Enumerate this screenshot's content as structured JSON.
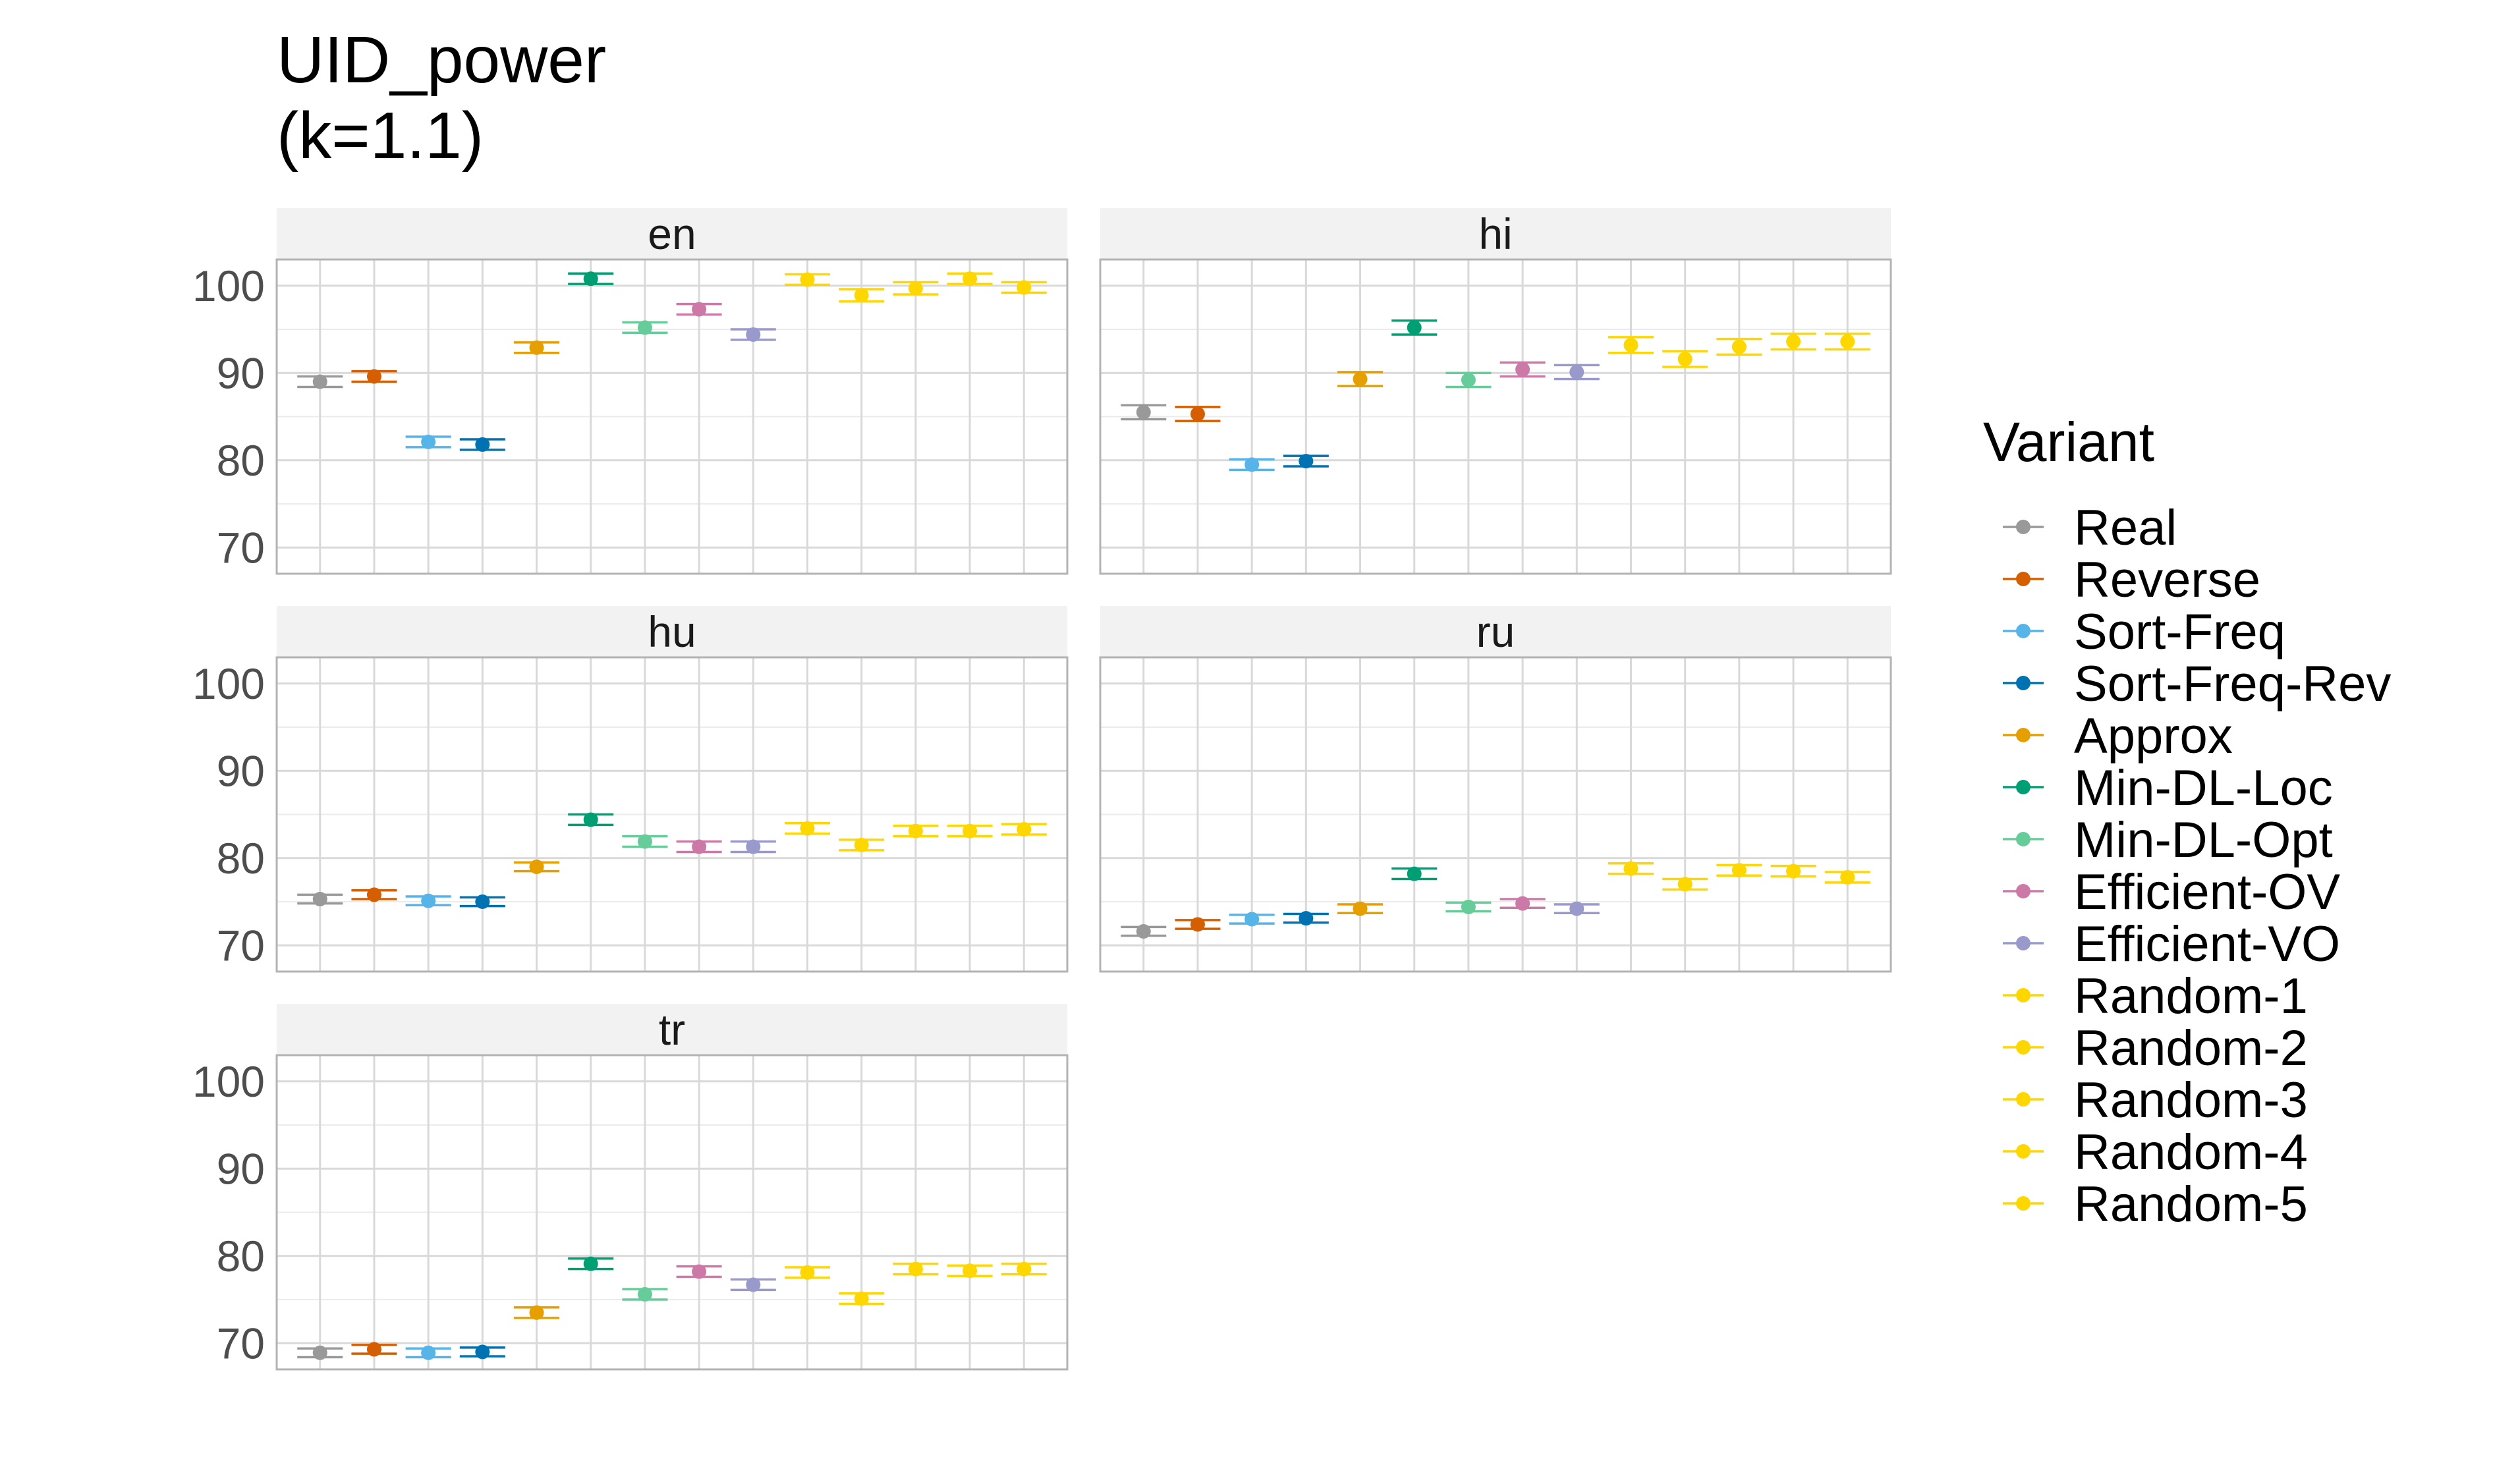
{
  "chart_data": {
    "type": "scatter",
    "subtype": "point-with-errorbar, faceted",
    "title": "UID_power",
    "subtitle": "(k=1.1)",
    "xlabel": "",
    "ylabel": "",
    "ylim": [
      67,
      103
    ],
    "yticks": [
      70,
      80,
      90,
      100
    ],
    "grid": true,
    "legend": {
      "title": "Variant",
      "position": "right"
    },
    "series": [
      {
        "name": "Real",
        "color": "#999999"
      },
      {
        "name": "Reverse",
        "color": "#D55E00"
      },
      {
        "name": "Sort-Freq",
        "color": "#56B4E9"
      },
      {
        "name": "Sort-Freq-Rev",
        "color": "#0072B2"
      },
      {
        "name": "Approx",
        "color": "#E69F00"
      },
      {
        "name": "Min-DL-Loc",
        "color": "#009E73"
      },
      {
        "name": "Min-DL-Opt",
        "color": "#66CC99"
      },
      {
        "name": "Efficient-OV",
        "color": "#CC79A7"
      },
      {
        "name": "Efficient-VO",
        "color": "#9999CC"
      },
      {
        "name": "Random-1",
        "color": "#FFD700"
      },
      {
        "name": "Random-2",
        "color": "#FFD700"
      },
      {
        "name": "Random-3",
        "color": "#FFD700"
      },
      {
        "name": "Random-4",
        "color": "#FFD700"
      },
      {
        "name": "Random-5",
        "color": "#FFD700"
      }
    ],
    "facets": [
      {
        "name": "en",
        "values": [
          89.0,
          89.6,
          82.1,
          81.8,
          92.9,
          100.8,
          95.2,
          97.3,
          94.4,
          100.7,
          98.9,
          99.7,
          100.8,
          99.8
        ],
        "errors": [
          0.6,
          0.6,
          0.6,
          0.6,
          0.6,
          0.6,
          0.6,
          0.6,
          0.6,
          0.6,
          0.7,
          0.7,
          0.6,
          0.6
        ]
      },
      {
        "name": "hi",
        "values": [
          85.5,
          85.3,
          79.5,
          79.9,
          89.3,
          95.2,
          89.2,
          90.4,
          90.1,
          93.2,
          91.6,
          93.0,
          93.6,
          93.6
        ],
        "errors": [
          0.8,
          0.8,
          0.6,
          0.6,
          0.8,
          0.8,
          0.8,
          0.8,
          0.8,
          0.9,
          0.9,
          0.9,
          0.9,
          0.9
        ]
      },
      {
        "name": "hu",
        "values": [
          75.3,
          75.8,
          75.1,
          75.0,
          79.0,
          84.4,
          81.9,
          81.3,
          81.3,
          83.4,
          81.5,
          83.1,
          83.1,
          83.3
        ],
        "errors": [
          0.5,
          0.5,
          0.5,
          0.5,
          0.5,
          0.6,
          0.6,
          0.6,
          0.6,
          0.6,
          0.6,
          0.6,
          0.6,
          0.6
        ]
      },
      {
        "name": "ru",
        "values": [
          71.6,
          72.4,
          73.0,
          73.1,
          74.2,
          78.2,
          74.4,
          74.8,
          74.2,
          78.8,
          77.0,
          78.6,
          78.5,
          77.8
        ],
        "errors": [
          0.5,
          0.5,
          0.5,
          0.5,
          0.5,
          0.6,
          0.5,
          0.5,
          0.5,
          0.6,
          0.6,
          0.6,
          0.6,
          0.6
        ]
      },
      {
        "name": "tr",
        "values": [
          68.9,
          69.3,
          68.9,
          69.0,
          73.5,
          79.1,
          75.6,
          78.2,
          76.7,
          78.1,
          75.1,
          78.5,
          78.3,
          78.5
        ],
        "errors": [
          0.5,
          0.5,
          0.5,
          0.5,
          0.6,
          0.6,
          0.6,
          0.6,
          0.6,
          0.6,
          0.6,
          0.6,
          0.6,
          0.6
        ]
      }
    ]
  }
}
